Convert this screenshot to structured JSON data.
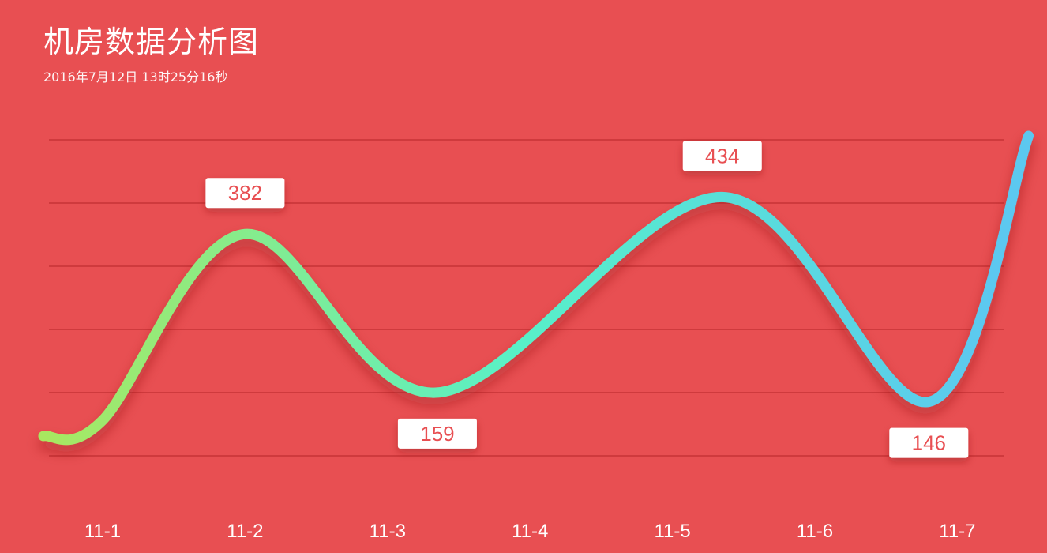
{
  "header": {
    "title": "机房数据分析图",
    "subtitle": "2016年7月12日 13时25分16秒"
  },
  "colors": {
    "background": "#e84f52",
    "gridline": "#cf3a3d",
    "label_text": "#e84f52",
    "label_box": "#ffffff",
    "line_start": "#a8e860",
    "line_mid": "#58f0c8",
    "line_end": "#5bc8f0"
  },
  "chart_data": {
    "type": "line",
    "smooth": true,
    "categories": [
      "11-1",
      "11-2",
      "11-3",
      "11-4",
      "11-5",
      "11-6",
      "11-7"
    ],
    "x": [
      0.5,
      1.5,
      2.85,
      4.85,
      6.3,
      7
    ],
    "y": [
      120,
      382,
      159,
      434,
      146,
      520
    ],
    "data_labels": [
      {
        "x": 1.5,
        "value": 382,
        "text": "382"
      },
      {
        "x": 2.85,
        "value": 159,
        "text": "159"
      },
      {
        "x": 4.85,
        "value": 434,
        "text": "434"
      },
      {
        "x": 6.3,
        "value": 146,
        "text": "146"
      }
    ],
    "ylim": [
      0,
      600
    ],
    "grid": true,
    "legend": "none"
  }
}
